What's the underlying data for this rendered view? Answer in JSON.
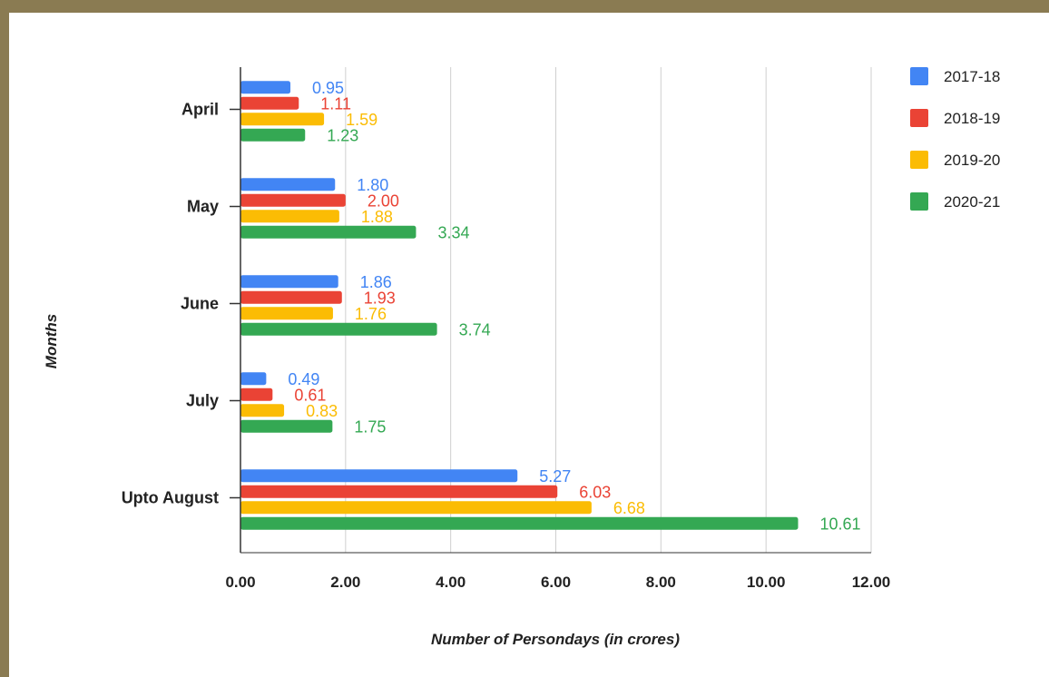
{
  "chart_data": {
    "type": "bar",
    "orientation": "horizontal",
    "title": "",
    "xlabel": "Number of Persondays (in crores)",
    "ylabel": "Months",
    "xlim": [
      0,
      12
    ],
    "xticks": [
      0,
      2,
      4,
      6,
      8,
      10,
      12
    ],
    "xtick_labels": [
      "0.00",
      "2.00",
      "4.00",
      "6.00",
      "8.00",
      "10.00",
      "12.00"
    ],
    "categories": [
      "April",
      "May",
      "June",
      "July",
      "Upto August"
    ],
    "grid": true,
    "legend": "right",
    "series": [
      {
        "name": "2017-18",
        "color": "#4285f4",
        "values": [
          0.95,
          1.8,
          1.86,
          0.49,
          5.27
        ],
        "labels": [
          "0.95",
          "1.80",
          "1.86",
          "0.49",
          "5.27"
        ]
      },
      {
        "name": "2018-19",
        "color": "#ea4335",
        "values": [
          1.11,
          2.0,
          1.93,
          0.61,
          6.03
        ],
        "labels": [
          "1.11",
          "2.00",
          "1.93",
          "0.61",
          "6.03"
        ]
      },
      {
        "name": "2019-20",
        "color": "#fbbc04",
        "values": [
          1.59,
          1.88,
          1.76,
          0.83,
          6.68
        ],
        "labels": [
          "1.59",
          "1.88",
          "1.76",
          "0.83",
          "6.68"
        ]
      },
      {
        "name": "2020-21",
        "color": "#34a853",
        "values": [
          1.23,
          3.34,
          3.74,
          1.75,
          10.61
        ],
        "labels": [
          "1.23",
          "3.34",
          "3.74",
          "1.75",
          "10.61"
        ]
      }
    ]
  }
}
